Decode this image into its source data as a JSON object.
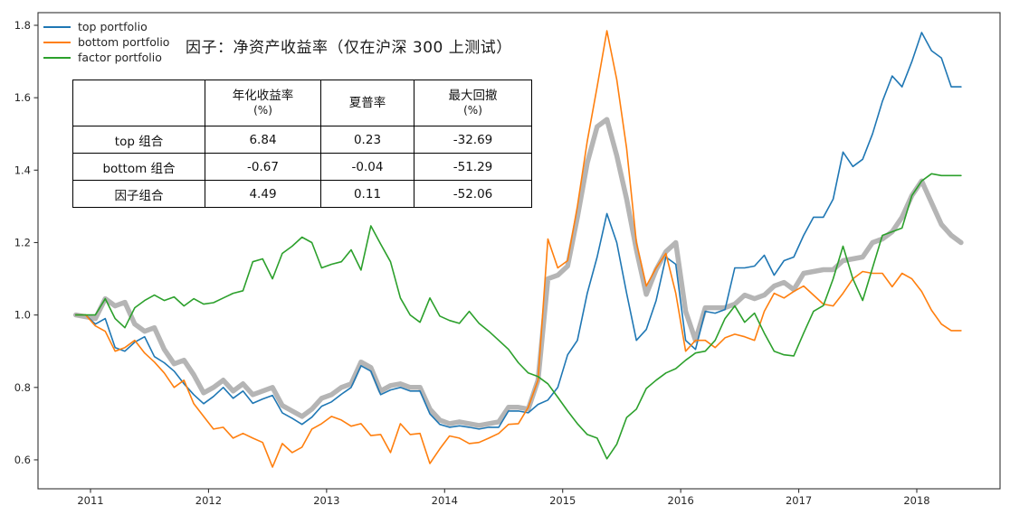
{
  "title": "因子：净资产收益率（仅在沪深 300 上测试）",
  "legend": [
    {
      "label": "top portfolio",
      "color": "#1f77b4"
    },
    {
      "label": "bottom portfolio",
      "color": "#ff7f0e"
    },
    {
      "label": "factor portfolio",
      "color": "#2ca02c"
    }
  ],
  "table": {
    "corner": "",
    "columns": [
      {
        "title": "年化收益率",
        "sub": "(%)"
      },
      {
        "title": "夏普率",
        "sub": ""
      },
      {
        "title": "最大回撤",
        "sub": "(%)"
      }
    ],
    "rows": [
      {
        "label": "top 组合",
        "values": [
          "6.84",
          "0.23",
          "-32.69"
        ]
      },
      {
        "label": "bottom 组合",
        "values": [
          "-0.67",
          "-0.04",
          "-51.29"
        ]
      },
      {
        "label": "因子组合",
        "values": [
          "4.49",
          "0.11",
          "-52.06"
        ]
      }
    ]
  },
  "chart_data": {
    "type": "line",
    "title": "因子：净资产收益率（仅在沪深 300 上测试）",
    "xlabel": "",
    "ylabel": "",
    "x_unit": "year (monthly net-value series)",
    "x_start": 2010.875,
    "x_step": 0.0833333,
    "x_ticks": [
      2011,
      2012,
      2013,
      2014,
      2015,
      2016,
      2017,
      2018
    ],
    "y_ticks": [
      0.6,
      0.8,
      1.0,
      1.2,
      1.4,
      1.6,
      1.8
    ],
    "xlim": [
      2010.555,
      2018.71
    ],
    "ylim": [
      0.52,
      1.835
    ],
    "grid": false,
    "legend_position": "upper-left",
    "series": [
      {
        "name": "benchmark (unlabeled gray)",
        "color": "#b5b5b5",
        "width": 5.5,
        "in_legend": false,
        "values": [
          1.0,
          0.995,
          0.99,
          1.045,
          1.025,
          1.035,
          0.975,
          0.955,
          0.965,
          0.905,
          0.865,
          0.875,
          0.835,
          0.785,
          0.8,
          0.82,
          0.79,
          0.81,
          0.78,
          0.79,
          0.8,
          0.75,
          0.735,
          0.72,
          0.74,
          0.77,
          0.78,
          0.8,
          0.81,
          0.87,
          0.855,
          0.79,
          0.805,
          0.81,
          0.8,
          0.8,
          0.74,
          0.71,
          0.7,
          0.705,
          0.7,
          0.695,
          0.7,
          0.705,
          0.745,
          0.745,
          0.74,
          0.82,
          1.1,
          1.11,
          1.135,
          1.27,
          1.42,
          1.52,
          1.54,
          1.44,
          1.32,
          1.18,
          1.057,
          1.125,
          1.175,
          1.2,
          1.01,
          0.93,
          1.02,
          1.02,
          1.02,
          1.03,
          1.055,
          1.045,
          1.055,
          1.08,
          1.09,
          1.07,
          1.115,
          1.12,
          1.125,
          1.125,
          1.15,
          1.155,
          1.16,
          1.2,
          1.21,
          1.23,
          1.27,
          1.33,
          1.37,
          1.31,
          1.25,
          1.22,
          1.2
        ]
      },
      {
        "name": "top portfolio",
        "color": "#1f77b4",
        "width": 1.6,
        "in_legend": true,
        "values": [
          1.0,
          1.0,
          0.975,
          0.99,
          0.91,
          0.9,
          0.925,
          0.94,
          0.885,
          0.868,
          0.845,
          0.81,
          0.78,
          0.755,
          0.775,
          0.8,
          0.77,
          0.79,
          0.756,
          0.768,
          0.778,
          0.73,
          0.715,
          0.698,
          0.718,
          0.748,
          0.76,
          0.781,
          0.8,
          0.86,
          0.845,
          0.78,
          0.793,
          0.8,
          0.79,
          0.79,
          0.727,
          0.698,
          0.69,
          0.694,
          0.69,
          0.685,
          0.69,
          0.69,
          0.735,
          0.735,
          0.73,
          0.753,
          0.765,
          0.8,
          0.89,
          0.93,
          1.06,
          1.16,
          1.28,
          1.2,
          1.06,
          0.93,
          0.96,
          1.04,
          1.16,
          1.14,
          0.93,
          0.905,
          1.01,
          1.005,
          1.015,
          1.13,
          1.13,
          1.135,
          1.165,
          1.11,
          1.15,
          1.16,
          1.22,
          1.27,
          1.27,
          1.32,
          1.45,
          1.41,
          1.43,
          1.5,
          1.59,
          1.66,
          1.63,
          1.7,
          1.78,
          1.73,
          1.71,
          1.63,
          1.63
        ]
      },
      {
        "name": "bottom portfolio",
        "color": "#ff7f0e",
        "width": 1.6,
        "in_legend": true,
        "values": [
          1.0,
          1.0,
          0.97,
          0.955,
          0.9,
          0.91,
          0.93,
          0.895,
          0.87,
          0.84,
          0.8,
          0.82,
          0.755,
          0.72,
          0.685,
          0.69,
          0.66,
          0.673,
          0.66,
          0.648,
          0.58,
          0.645,
          0.62,
          0.635,
          0.685,
          0.7,
          0.72,
          0.71,
          0.693,
          0.7,
          0.667,
          0.67,
          0.62,
          0.7,
          0.67,
          0.673,
          0.59,
          0.63,
          0.666,
          0.66,
          0.645,
          0.648,
          0.66,
          0.673,
          0.698,
          0.7,
          0.745,
          0.82,
          1.21,
          1.13,
          1.15,
          1.3,
          1.48,
          1.63,
          1.785,
          1.65,
          1.46,
          1.2,
          1.08,
          1.13,
          1.17,
          1.06,
          0.9,
          0.93,
          0.93,
          0.91,
          0.937,
          0.947,
          0.94,
          0.93,
          1.01,
          1.06,
          1.047,
          1.065,
          1.08,
          1.055,
          1.03,
          1.025,
          1.06,
          1.1,
          1.12,
          1.115,
          1.115,
          1.078,
          1.115,
          1.1,
          1.065,
          1.013,
          0.975,
          0.957,
          0.957
        ]
      },
      {
        "name": "factor portfolio",
        "color": "#2ca02c",
        "width": 1.6,
        "in_legend": true,
        "values": [
          1.0,
          1.0,
          1.0,
          1.045,
          0.99,
          0.965,
          1.02,
          1.04,
          1.055,
          1.04,
          1.05,
          1.025,
          1.045,
          1.03,
          1.034,
          1.047,
          1.06,
          1.067,
          1.147,
          1.155,
          1.1,
          1.17,
          1.19,
          1.215,
          1.2,
          1.13,
          1.14,
          1.147,
          1.18,
          1.124,
          1.246,
          1.196,
          1.147,
          1.047,
          1.0,
          0.98,
          1.047,
          0.997,
          0.985,
          0.977,
          1.01,
          0.977,
          0.955,
          0.93,
          0.905,
          0.868,
          0.84,
          0.83,
          0.81,
          0.773,
          0.735,
          0.7,
          0.67,
          0.66,
          0.603,
          0.643,
          0.717,
          0.74,
          0.797,
          0.82,
          0.84,
          0.852,
          0.875,
          0.895,
          0.9,
          0.93,
          0.99,
          1.025,
          0.98,
          1.005,
          0.95,
          0.9,
          0.89,
          0.887,
          0.95,
          1.01,
          1.026,
          1.1,
          1.19,
          1.1,
          1.04,
          1.13,
          1.22,
          1.23,
          1.24,
          1.33,
          1.37,
          1.39,
          1.385,
          1.385,
          1.385
        ]
      }
    ]
  }
}
